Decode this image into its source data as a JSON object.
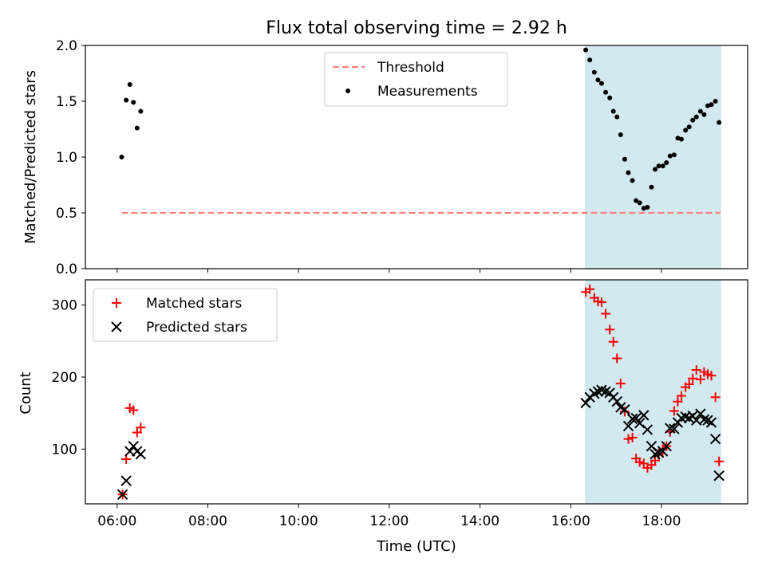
{
  "chart_data": {
    "title": "Flux total observing time = 2.92 h",
    "x_axis": {
      "label": "Time (UTC)",
      "tick_labels": [
        "06:00",
        "08:00",
        "10:00",
        "12:00",
        "14:00",
        "16:00",
        "18:00"
      ],
      "tick_values": [
        6,
        8,
        10,
        12,
        14,
        16,
        18
      ],
      "range": [
        5.3,
        19.9
      ],
      "unit": "hours UTC"
    },
    "observing_window": {
      "start": 16.33,
      "end": 19.3,
      "color": "#d2e9f0"
    },
    "panels": [
      {
        "type": "scatter",
        "ylabel": "Matched/Predicted stars",
        "ylim": [
          0,
          2.0
        ],
        "yticks": [
          0.0,
          0.5,
          1.0,
          1.5,
          2.0
        ],
        "ytick_labels": [
          "0.0",
          "0.5",
          "1.0",
          "1.5",
          "2.0"
        ],
        "legend_position": "top-center",
        "series": [
          {
            "name": "Threshold",
            "style": "dashed-line",
            "color": "#ff7f7f",
            "x": [
              6.1,
              19.3
            ],
            "y": [
              0.5,
              0.5
            ]
          },
          {
            "name": "Measurements",
            "style": "dot",
            "color": "#000000",
            "x": [
              6.1,
              6.2,
              6.28,
              6.36,
              6.44,
              6.52,
              16.33,
              16.42,
              16.52,
              16.6,
              16.68,
              16.77,
              16.86,
              16.94,
              17.02,
              17.1,
              17.19,
              17.27,
              17.36,
              17.44,
              17.52,
              17.61,
              17.69,
              17.78,
              17.86,
              17.94,
              18.03,
              18.11,
              18.19,
              18.28,
              18.36,
              18.44,
              18.53,
              18.61,
              18.69,
              18.77,
              18.86,
              18.94,
              19.02,
              19.1,
              19.19,
              19.27
            ],
            "y": [
              1.0,
              1.51,
              1.65,
              1.49,
              1.26,
              1.41,
              1.96,
              1.87,
              1.76,
              1.69,
              1.66,
              1.58,
              1.53,
              1.41,
              1.36,
              1.2,
              0.98,
              0.86,
              0.79,
              0.61,
              0.59,
              0.54,
              0.55,
              0.73,
              0.89,
              0.92,
              0.92,
              0.95,
              1.01,
              1.02,
              1.17,
              1.16,
              1.24,
              1.27,
              1.33,
              1.36,
              1.41,
              1.38,
              1.46,
              1.47,
              1.5,
              1.31
            ]
          }
        ]
      },
      {
        "type": "scatter",
        "ylabel": "Count",
        "ylim": [
          24,
          335
        ],
        "yticks": [
          100,
          200,
          300
        ],
        "ytick_labels": [
          "100",
          "200",
          "300"
        ],
        "legend_position": "top-left",
        "series": [
          {
            "name": "Matched stars",
            "style": "plus",
            "color": "#ff0000",
            "x": [
              6.12,
              6.2,
              6.28,
              6.36,
              6.44,
              6.52,
              16.33,
              16.42,
              16.52,
              16.6,
              16.68,
              16.77,
              16.86,
              16.94,
              17.02,
              17.1,
              17.19,
              17.27,
              17.36,
              17.44,
              17.52,
              17.61,
              17.69,
              17.78,
              17.86,
              17.94,
              18.03,
              18.11,
              18.19,
              18.28,
              18.36,
              18.44,
              18.53,
              18.61,
              18.69,
              18.77,
              18.86,
              18.94,
              19.02,
              19.1,
              19.19,
              19.27
            ],
            "y": [
              37,
              86,
              157,
              154,
              123,
              130,
              318,
              322,
              310,
              305,
              304,
              288,
              266,
              249,
              226,
              191,
              152,
              114,
              116,
              87,
              82,
              80,
              74,
              78,
              84,
              92,
              100,
              104,
              124,
              153,
              166,
              174,
              186,
              190,
              198,
              210,
              197,
              207,
              204,
              202,
              172,
              83
            ]
          },
          {
            "name": "Predicted stars",
            "style": "x",
            "color": "#000000",
            "x": [
              6.12,
              6.2,
              6.28,
              6.36,
              6.44,
              6.52,
              16.33,
              16.42,
              16.52,
              16.6,
              16.68,
              16.77,
              16.86,
              16.94,
              17.02,
              17.1,
              17.19,
              17.27,
              17.36,
              17.44,
              17.52,
              17.61,
              17.69,
              17.78,
              17.86,
              17.94,
              18.03,
              18.11,
              18.19,
              18.28,
              18.36,
              18.44,
              18.53,
              18.61,
              18.69,
              18.77,
              18.86,
              18.94,
              19.02,
              19.1,
              19.19,
              19.27
            ],
            "y": [
              37,
              56,
              97,
              104,
              97,
              93,
              164,
              172,
              177,
              180,
              182,
              180,
              178,
              172,
              166,
              158,
              155,
              132,
              142,
              143,
              136,
              147,
              127,
              104,
              93,
              95,
              97,
              104,
              129,
              128,
              137,
              143,
              145,
              143,
              146,
              140,
              149,
              141,
              140,
              137,
              114,
              63
            ]
          }
        ]
      }
    ]
  }
}
